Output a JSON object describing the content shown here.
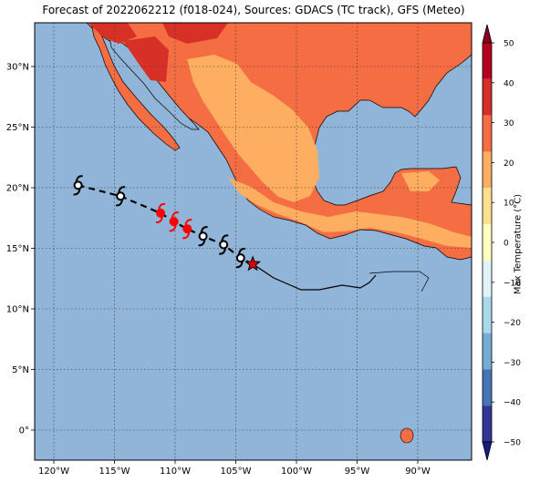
{
  "title": "Forecast of 2022062212 (f018-024), Sources: GDACS (TC track), GFS (Meteo)",
  "lon_ticks": [
    "120°W",
    "115°W",
    "110°W",
    "105°W",
    "100°W",
    "95°W",
    "90°W"
  ],
  "lat_ticks": [
    "30°N",
    "25°N",
    "20°N",
    "15°N",
    "10°N",
    "5°N",
    "0°"
  ],
  "colorbar": {
    "label": "Max Temperature (°C)",
    "ticks": [
      "50",
      "40",
      "30",
      "20",
      "10",
      "0",
      "−10",
      "−20",
      "−30",
      "−40",
      "−50"
    ],
    "colors_top_to_bottom": [
      "#870021",
      "#b5001f",
      "#d62f27",
      "#f46d43",
      "#fdae61",
      "#fee090",
      "#ffffbf",
      "#e0f3f8",
      "#abd9e9",
      "#74add1",
      "#4575b4",
      "#313695",
      "#1a1a80"
    ]
  },
  "colors": {
    "ocean": "#91b4d9",
    "land_warm": "#f46d43",
    "land_hot": "#d73027",
    "land_mild": "#fdae61",
    "storm_past": "#000000",
    "storm_forecast": "#ff0000",
    "current_position": "#e00000"
  },
  "track": {
    "points": [
      {
        "lon": -118.0,
        "lat": 20.2,
        "color": "black"
      },
      {
        "lon": -114.5,
        "lat": 19.3,
        "color": "black"
      },
      {
        "lon": -111.2,
        "lat": 17.9,
        "color": "red"
      },
      {
        "lon": -110.1,
        "lat": 17.2,
        "color": "red"
      },
      {
        "lon": -109.0,
        "lat": 16.6,
        "color": "red"
      },
      {
        "lon": -107.7,
        "lat": 16.0,
        "color": "black"
      },
      {
        "lon": -106.0,
        "lat": 15.3,
        "color": "black"
      },
      {
        "lon": -104.6,
        "lat": 14.2,
        "color": "black"
      }
    ],
    "current": {
      "lon": -103.6,
      "lat": 13.7
    }
  }
}
